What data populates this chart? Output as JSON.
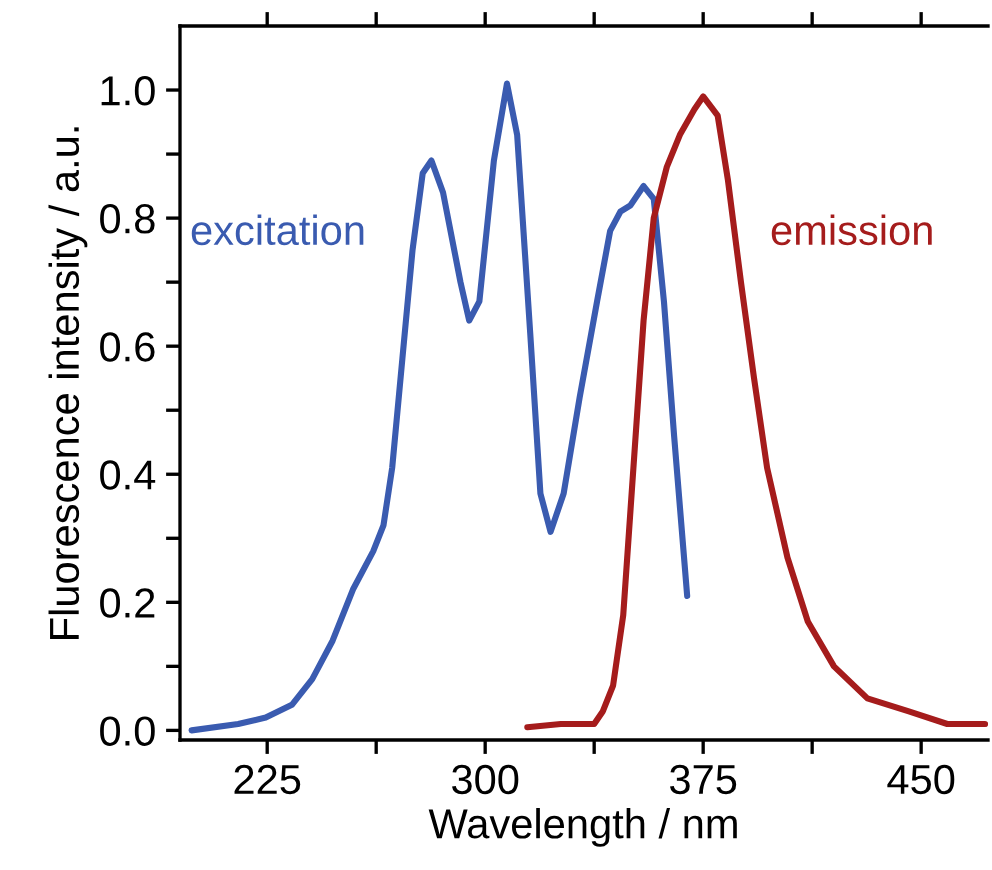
{
  "chart_data": {
    "type": "line",
    "xlabel": "Wavelength / nm",
    "ylabel": "Fluorescence intensity / a.u.",
    "xlim": [
      195,
      473
    ],
    "ylim": [
      -0.015,
      1.1
    ],
    "xticks": [
      225,
      {
        "value": 262.5,
        "label": null
      },
      300,
      {
        "value": 337.5,
        "label": null
      },
      375,
      {
        "value": 412.5,
        "label": null
      },
      450
    ],
    "yticks": [
      {
        "value": 0,
        "label": "0.0"
      },
      {
        "value": 0.1,
        "label": null
      },
      0.2,
      {
        "value": 0.3,
        "label": null
      },
      0.4,
      {
        "value": 0.5,
        "label": null
      },
      0.6,
      {
        "value": 0.7,
        "label": null
      },
      0.8,
      {
        "value": 0.9,
        "label": null
      },
      {
        "value": 1,
        "label": "1.0"
      }
    ],
    "grid": false,
    "legend": false,
    "marker": "none",
    "line_style": "solid",
    "series": [
      {
        "name": "excitation",
        "color": "#3a5bb0",
        "x": [
          199,
          215,
          224.5,
          233.5,
          240.5,
          247.5,
          254.5,
          261.5,
          265,
          268,
          271.5,
          275,
          278.5,
          281.5,
          285.5,
          291.5,
          294.5,
          298,
          303,
          307.5,
          311,
          315.5,
          319,
          322.5,
          327,
          332.5,
          338.5,
          343,
          346.5,
          350,
          354.5,
          358,
          361.5,
          365,
          369.5
        ],
        "values": [
          0.0,
          0.01,
          0.02,
          0.04,
          0.08,
          0.14,
          0.22,
          0.28,
          0.32,
          0.41,
          0.58,
          0.75,
          0.87,
          0.89,
          0.84,
          0.7,
          0.64,
          0.67,
          0.89,
          1.01,
          0.93,
          0.62,
          0.37,
          0.31,
          0.37,
          0.52,
          0.67,
          0.78,
          0.81,
          0.82,
          0.85,
          0.83,
          0.67,
          0.46,
          0.21
        ]
      },
      {
        "name": "emission",
        "color": "#a51c1c",
        "x": [
          314.5,
          326,
          337.5,
          340.5,
          344,
          347.5,
          351,
          354.5,
          358,
          362.5,
          367,
          372,
          375,
          380,
          383.5,
          388,
          392.5,
          397,
          404,
          411,
          420,
          431.5,
          445.5,
          459,
          472
        ],
        "values": [
          0.005,
          0.01,
          0.01,
          0.03,
          0.07,
          0.18,
          0.41,
          0.64,
          0.8,
          0.88,
          0.93,
          0.97,
          0.99,
          0.96,
          0.86,
          0.7,
          0.55,
          0.41,
          0.27,
          0.17,
          0.1,
          0.05,
          0.03,
          0.01,
          0.01
        ]
      }
    ]
  }
}
